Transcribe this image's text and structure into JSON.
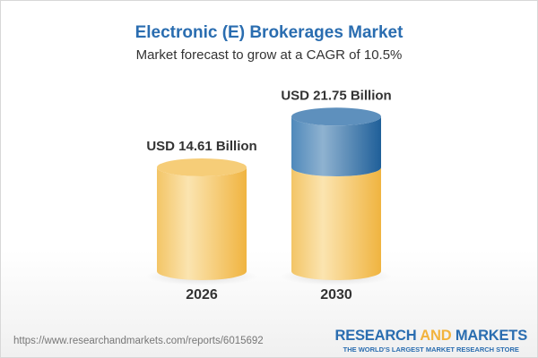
{
  "title": "Electronic (E) Brokerages Market",
  "subtitle": "Market forecast to grow at a CAGR of 10.5%",
  "chart_data": {
    "type": "bar",
    "categories": [
      "2026",
      "2030"
    ],
    "values": [
      14.61,
      21.75
    ],
    "data_labels": [
      "USD 14.61 Billion",
      "USD 21.75 Billion"
    ],
    "unit": "USD Billion",
    "colors": {
      "base": "#f2c05a",
      "growth": "#3f7fb5"
    }
  },
  "footer": {
    "url": "https://www.researchandmarkets.com/reports/6015692",
    "logo_word1": "RESEARCH",
    "logo_word2": "AND",
    "logo_word3": "MARKETS",
    "logo_tagline": "THE WORLD'S LARGEST MARKET RESEARCH STORE"
  }
}
